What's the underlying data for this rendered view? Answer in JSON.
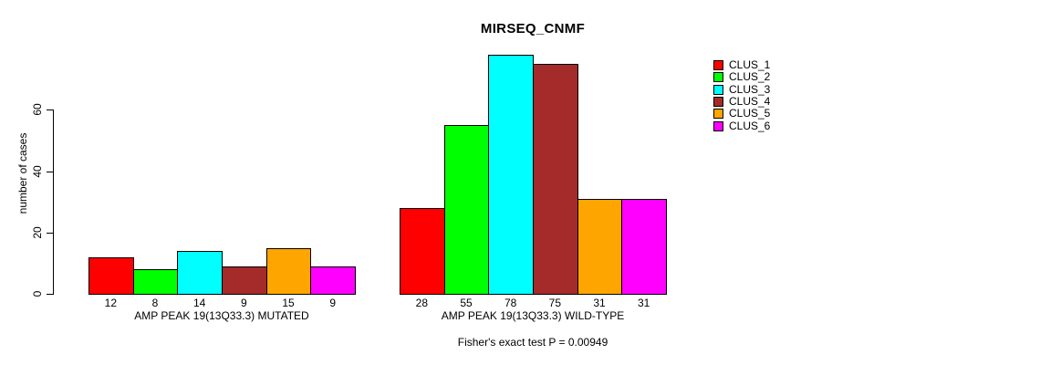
{
  "title": "MIRSEQ_CNMF",
  "ylabel": "number of cases",
  "footer": "Fisher's exact test P = 0.00949",
  "legend": {
    "position": "right",
    "items": [
      {
        "label": "CLUS_1",
        "color": "#FF0000"
      },
      {
        "label": "CLUS_2",
        "color": "#00FF00"
      },
      {
        "label": "CLUS_3",
        "color": "#00FFFF"
      },
      {
        "label": "CLUS_4",
        "color": "#A52A2A"
      },
      {
        "label": "CLUS_5",
        "color": "#FFA500"
      },
      {
        "label": "CLUS_6",
        "color": "#FF00FF"
      }
    ]
  },
  "chart_data": {
    "type": "bar",
    "title": "MIRSEQ_CNMF",
    "xlabel": "",
    "ylabel": "number of cases",
    "yticks": [
      0,
      20,
      40,
      60
    ],
    "ylim": [
      0,
      80
    ],
    "grid": false,
    "legend_position": "right",
    "series": [
      "CLUS_1",
      "CLUS_2",
      "CLUS_3",
      "CLUS_4",
      "CLUS_5",
      "CLUS_6"
    ],
    "series_colors": [
      "#FF0000",
      "#00FF00",
      "#00FFFF",
      "#A52A2A",
      "#FFA500",
      "#FF00FF"
    ],
    "groups": [
      {
        "label": "AMP PEAK 19(13Q33.3) MUTATED",
        "values": [
          12,
          8,
          14,
          9,
          15,
          9
        ]
      },
      {
        "label": "AMP PEAK 19(13Q33.3) WILD-TYPE",
        "values": [
          28,
          55,
          78,
          75,
          31,
          31
        ]
      }
    ],
    "annotation": "Fisher's exact test P = 0.00949",
    "bar_border_color": "#000000",
    "background_color": "#FFFFFF"
  }
}
